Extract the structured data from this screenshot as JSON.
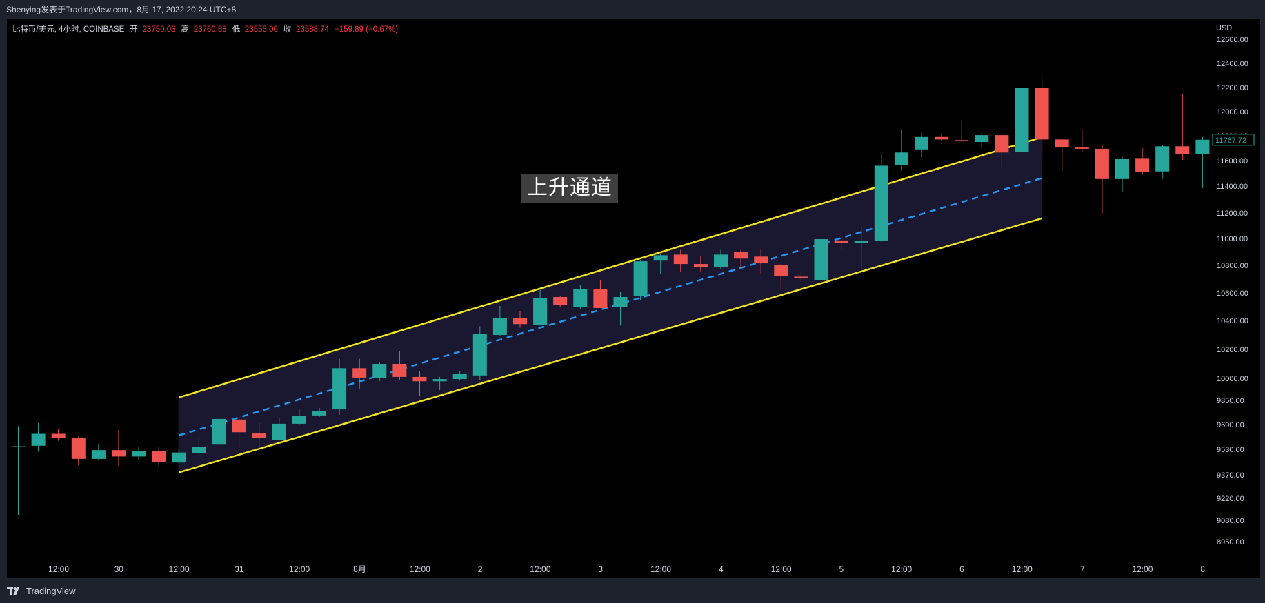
{
  "header": {
    "title": "Shenying发表于TradingView.com，8月 17, 2022 20:24 UTC+8"
  },
  "legend": {
    "symbol": "比特币/美元, 4小时, COINBASE",
    "open_label": "开=",
    "open_value": "23750.03",
    "high_label": "高=",
    "high_value": "23760.88",
    "low_label": "低=",
    "low_value": "23555.00",
    "close_label": "收=",
    "close_value": "23588.74",
    "change": "−159.89 (−0.67%)"
  },
  "footer": {
    "brand": "TradingView",
    "logo_icon": "tradingview-logo-icon"
  },
  "colors": {
    "up": "#26a69a",
    "down": "#ef5350",
    "channel_line": "#f5e424",
    "midline": "#2196f3",
    "channel_fill": "#1a1730"
  },
  "chart_data": {
    "type": "candlestick",
    "currency": "USD",
    "last_price_label": "11767.72",
    "annotation": "上升通道",
    "y_ticks": [
      "12600.00",
      "12400.00",
      "12200.00",
      "12000.00",
      "11800.00",
      "11600.00",
      "11400.00",
      "11200.00",
      "11000.00",
      "10800.00",
      "10600.00",
      "10400.00",
      "10200.00",
      "10000.00",
      "9850.00",
      "9690.00",
      "9530.00",
      "9370.00",
      "9220.00",
      "9080.00",
      "8950.00"
    ],
    "x_ticks": [
      "12:00",
      "30",
      "12:00",
      "31",
      "12:00",
      "8月",
      "12:00",
      "2",
      "12:00",
      "3",
      "12:00",
      "4",
      "12:00",
      "5",
      "12:00",
      "6",
      "12:00",
      "7",
      "12:00",
      "8"
    ],
    "channel": {
      "upper": [
        [
          8.0,
          9870
        ],
        [
          51.0,
          11788
        ]
      ],
      "lower": [
        [
          8.0,
          9385
        ],
        [
          51.0,
          11158
        ]
      ],
      "mid": [
        [
          8.0,
          9620
        ],
        [
          51.0,
          11462
        ]
      ]
    },
    "candles": [
      {
        "o": 9550,
        "h": 9680,
        "l": 9115,
        "c": 9550
      },
      {
        "o": 9553,
        "h": 9700,
        "l": 9515,
        "c": 9630
      },
      {
        "o": 9630,
        "h": 9660,
        "l": 9585,
        "c": 9605
      },
      {
        "o": 9605,
        "h": 9612,
        "l": 9430,
        "c": 9470
      },
      {
        "o": 9470,
        "h": 9565,
        "l": 9460,
        "c": 9525
      },
      {
        "o": 9525,
        "h": 9655,
        "l": 9425,
        "c": 9485
      },
      {
        "o": 9485,
        "h": 9545,
        "l": 9465,
        "c": 9518
      },
      {
        "o": 9518,
        "h": 9545,
        "l": 9425,
        "c": 9450
      },
      {
        "o": 9447,
        "h": 9535,
        "l": 9435,
        "c": 9510
      },
      {
        "o": 9505,
        "h": 9605,
        "l": 9490,
        "c": 9545
      },
      {
        "o": 9560,
        "h": 9795,
        "l": 9530,
        "c": 9727
      },
      {
        "o": 9723,
        "h": 9739,
        "l": 9540,
        "c": 9640
      },
      {
        "o": 9632,
        "h": 9700,
        "l": 9550,
        "c": 9602
      },
      {
        "o": 9590,
        "h": 9735,
        "l": 9585,
        "c": 9695
      },
      {
        "o": 9695,
        "h": 9792,
        "l": 9690,
        "c": 9745
      },
      {
        "o": 9750,
        "h": 9800,
        "l": 9740,
        "c": 9780
      },
      {
        "o": 9790,
        "h": 10135,
        "l": 9755,
        "c": 10070
      },
      {
        "o": 10070,
        "h": 10135,
        "l": 9925,
        "c": 10005
      },
      {
        "o": 10005,
        "h": 10110,
        "l": 9980,
        "c": 10100
      },
      {
        "o": 10100,
        "h": 10190,
        "l": 9990,
        "c": 10010
      },
      {
        "o": 10010,
        "h": 10050,
        "l": 9880,
        "c": 9980
      },
      {
        "o": 9980,
        "h": 10010,
        "l": 9920,
        "c": 9995
      },
      {
        "o": 9995,
        "h": 10050,
        "l": 9985,
        "c": 10030
      },
      {
        "o": 10020,
        "h": 10360,
        "l": 9990,
        "c": 10305
      },
      {
        "o": 10300,
        "h": 10505,
        "l": 10295,
        "c": 10420
      },
      {
        "o": 10420,
        "h": 10465,
        "l": 10350,
        "c": 10375
      },
      {
        "o": 10370,
        "h": 10630,
        "l": 10365,
        "c": 10565
      },
      {
        "o": 10570,
        "h": 10580,
        "l": 10495,
        "c": 10510
      },
      {
        "o": 10500,
        "h": 10655,
        "l": 10480,
        "c": 10625
      },
      {
        "o": 10625,
        "h": 10690,
        "l": 10495,
        "c": 10490
      },
      {
        "o": 10500,
        "h": 10605,
        "l": 10365,
        "c": 10570
      },
      {
        "o": 10580,
        "h": 10835,
        "l": 10545,
        "c": 10830
      },
      {
        "o": 10835,
        "h": 10885,
        "l": 10735,
        "c": 10875
      },
      {
        "o": 10880,
        "h": 10915,
        "l": 10750,
        "c": 10810
      },
      {
        "o": 10810,
        "h": 10870,
        "l": 10755,
        "c": 10790
      },
      {
        "o": 10790,
        "h": 10915,
        "l": 10775,
        "c": 10880
      },
      {
        "o": 10900,
        "h": 10915,
        "l": 10780,
        "c": 10850
      },
      {
        "o": 10865,
        "h": 10925,
        "l": 10735,
        "c": 10815
      },
      {
        "o": 10800,
        "h": 10810,
        "l": 10625,
        "c": 10720
      },
      {
        "o": 10718,
        "h": 10755,
        "l": 10680,
        "c": 10705
      },
      {
        "o": 10690,
        "h": 10995,
        "l": 10675,
        "c": 10995
      },
      {
        "o": 10985,
        "h": 10990,
        "l": 10915,
        "c": 10965
      },
      {
        "o": 10965,
        "h": 11090,
        "l": 10775,
        "c": 10980
      },
      {
        "o": 10980,
        "h": 11655,
        "l": 10975,
        "c": 11560
      },
      {
        "o": 11565,
        "h": 11855,
        "l": 11520,
        "c": 11665
      },
      {
        "o": 11690,
        "h": 11825,
        "l": 11625,
        "c": 11790
      },
      {
        "o": 11790,
        "h": 11820,
        "l": 11760,
        "c": 11770
      },
      {
        "o": 11765,
        "h": 11930,
        "l": 11745,
        "c": 11755
      },
      {
        "o": 11750,
        "h": 11825,
        "l": 11705,
        "c": 11805
      },
      {
        "o": 11805,
        "h": 11810,
        "l": 11540,
        "c": 11665
      },
      {
        "o": 11670,
        "h": 12285,
        "l": 11645,
        "c": 12195
      },
      {
        "o": 12195,
        "h": 12305,
        "l": 11610,
        "c": 11770
      },
      {
        "o": 11770,
        "h": 11775,
        "l": 11520,
        "c": 11705
      },
      {
        "o": 11705,
        "h": 11845,
        "l": 11670,
        "c": 11695
      },
      {
        "o": 11695,
        "h": 11725,
        "l": 11190,
        "c": 11455
      },
      {
        "o": 11455,
        "h": 11630,
        "l": 11355,
        "c": 11615
      },
      {
        "o": 11620,
        "h": 11700,
        "l": 11490,
        "c": 11510
      },
      {
        "o": 11515,
        "h": 11725,
        "l": 11455,
        "c": 11715
      },
      {
        "o": 11715,
        "h": 12145,
        "l": 11605,
        "c": 11655
      },
      {
        "o": 11655,
        "h": 11790,
        "l": 11385,
        "c": 11768
      }
    ]
  }
}
